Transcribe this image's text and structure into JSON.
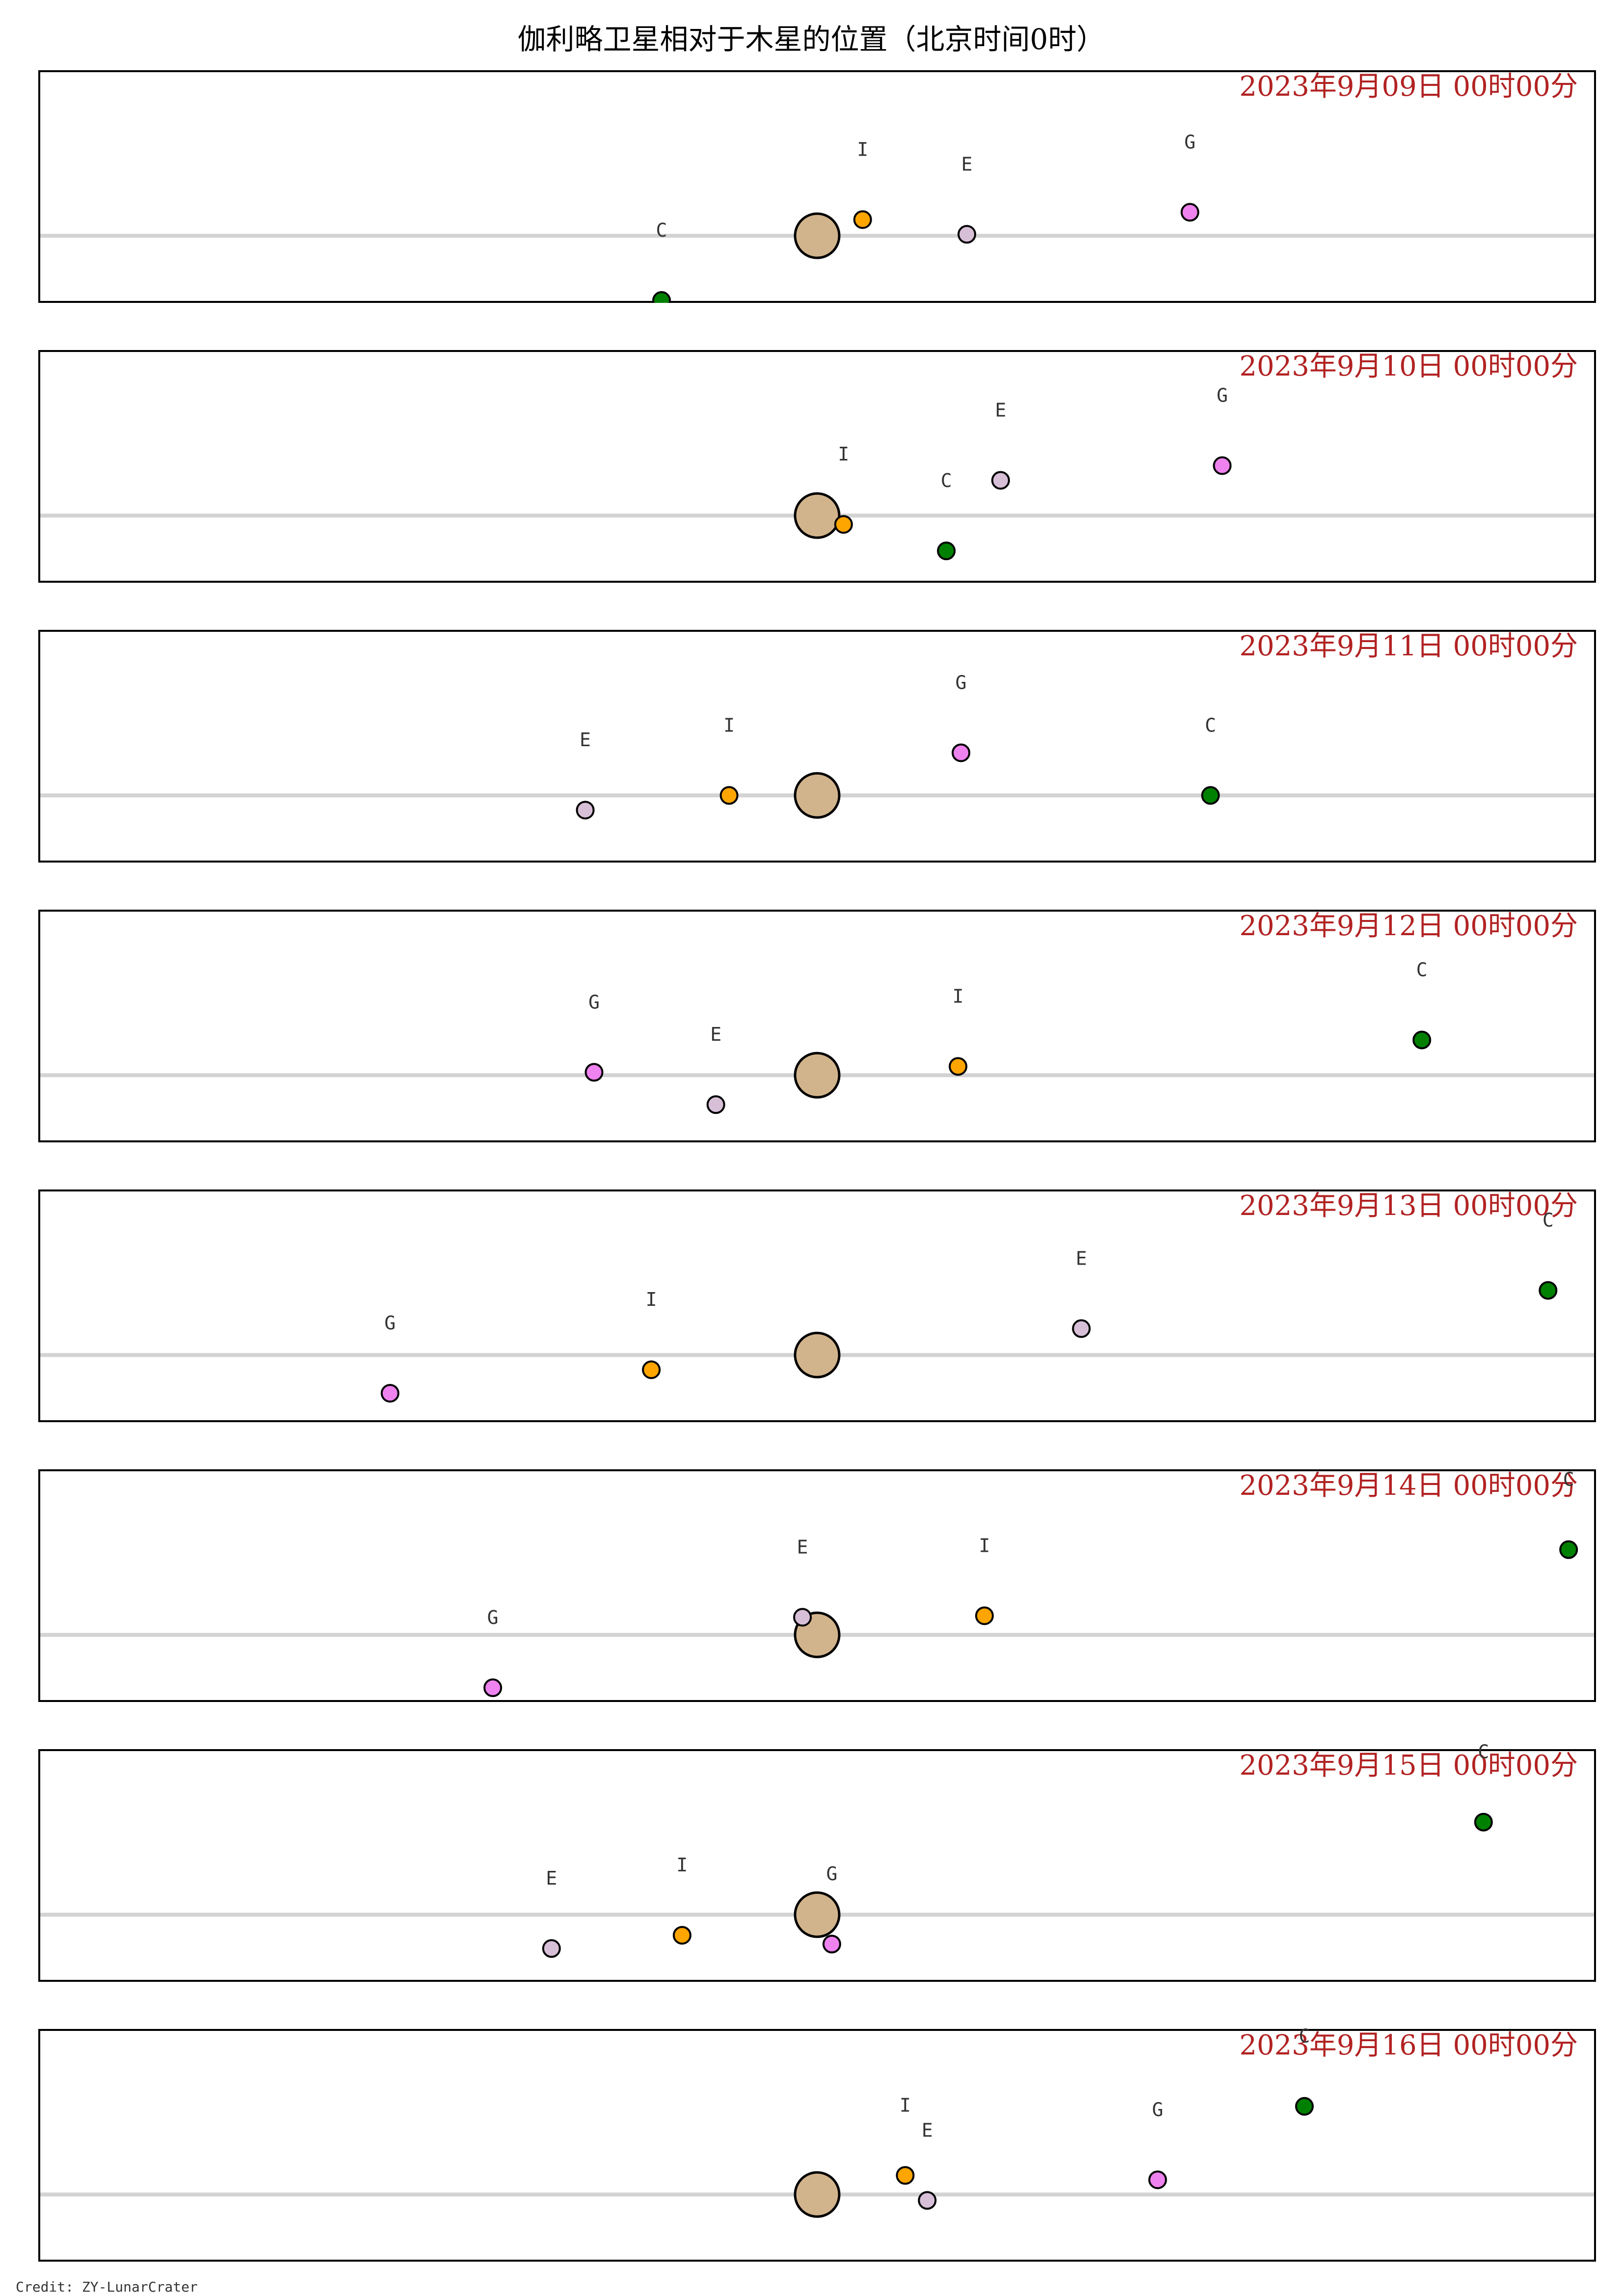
{
  "title": "伽利略卫星相对于木星的位置（北京时间0时）",
  "credit": "Credit: ZY-LunarCrater",
  "colors": {
    "jupiter": "#d2b48c",
    "io": "#ffa500",
    "europa": "#d8bfd8",
    "ganymede": "#ee82ee",
    "callisto": "#008000",
    "date_text": "#b22222",
    "axis_line": "#d3d3d3",
    "frame": "#000000"
  },
  "chart_data": {
    "type": "scatter",
    "xlim": [
      -26.5,
      26.5
    ],
    "ylim": [
      -2.25,
      5.6
    ],
    "x_direction": "east is left",
    "moons": [
      "I",
      "E",
      "G",
      "C"
    ],
    "panels": [
      {
        "date": "2023年9月09日  00时00分",
        "points": {
          "I": [
            1.55,
            0.55
          ],
          "E": [
            5.1,
            0.05
          ],
          "G": [
            12.7,
            0.8
          ],
          "C": [
            -5.3,
            -2.2
          ]
        }
      },
      {
        "date": "2023年9月10日  00时00分",
        "points": {
          "I": [
            0.9,
            -0.3
          ],
          "E": [
            6.25,
            1.2
          ],
          "G": [
            13.8,
            1.7
          ],
          "C": [
            4.4,
            -1.2
          ]
        }
      },
      {
        "date": "2023年9月11日  00时00分",
        "points": {
          "I": [
            -3.0,
            0.0
          ],
          "E": [
            -7.9,
            -0.5
          ],
          "G": [
            4.9,
            1.45
          ],
          "C": [
            13.4,
            0.0
          ]
        }
      },
      {
        "date": "2023年9月12日  00时00分",
        "points": {
          "I": [
            4.8,
            0.3
          ],
          "E": [
            -3.45,
            -1.0
          ],
          "G": [
            -7.6,
            0.1
          ],
          "C": [
            20.6,
            1.2
          ]
        }
      },
      {
        "date": "2023年9月13日  00时00分",
        "points": {
          "I": [
            -5.65,
            -0.5
          ],
          "E": [
            9.0,
            0.9
          ],
          "G": [
            -14.55,
            -1.3
          ],
          "C": [
            24.9,
            2.2
          ]
        }
      },
      {
        "date": "2023年9月14日  00时00分",
        "points": {
          "I": [
            5.7,
            0.65
          ],
          "E": [
            -0.5,
            0.6
          ],
          "G": [
            -11.05,
            -1.8
          ],
          "C": [
            25.6,
            2.9
          ]
        }
      },
      {
        "date": "2023年9月15日  00时00分",
        "points": {
          "I": [
            -4.6,
            -0.7
          ],
          "E": [
            -9.05,
            -1.15
          ],
          "G": [
            0.5,
            -1.0
          ],
          "C": [
            22.7,
            3.15
          ]
        }
      },
      {
        "date": "2023年9月16日  00时00分",
        "points": {
          "I": [
            3.0,
            0.65
          ],
          "E": [
            3.75,
            -0.2
          ],
          "G": [
            11.6,
            0.5
          ],
          "C": [
            16.6,
            3.0
          ]
        }
      }
    ]
  }
}
